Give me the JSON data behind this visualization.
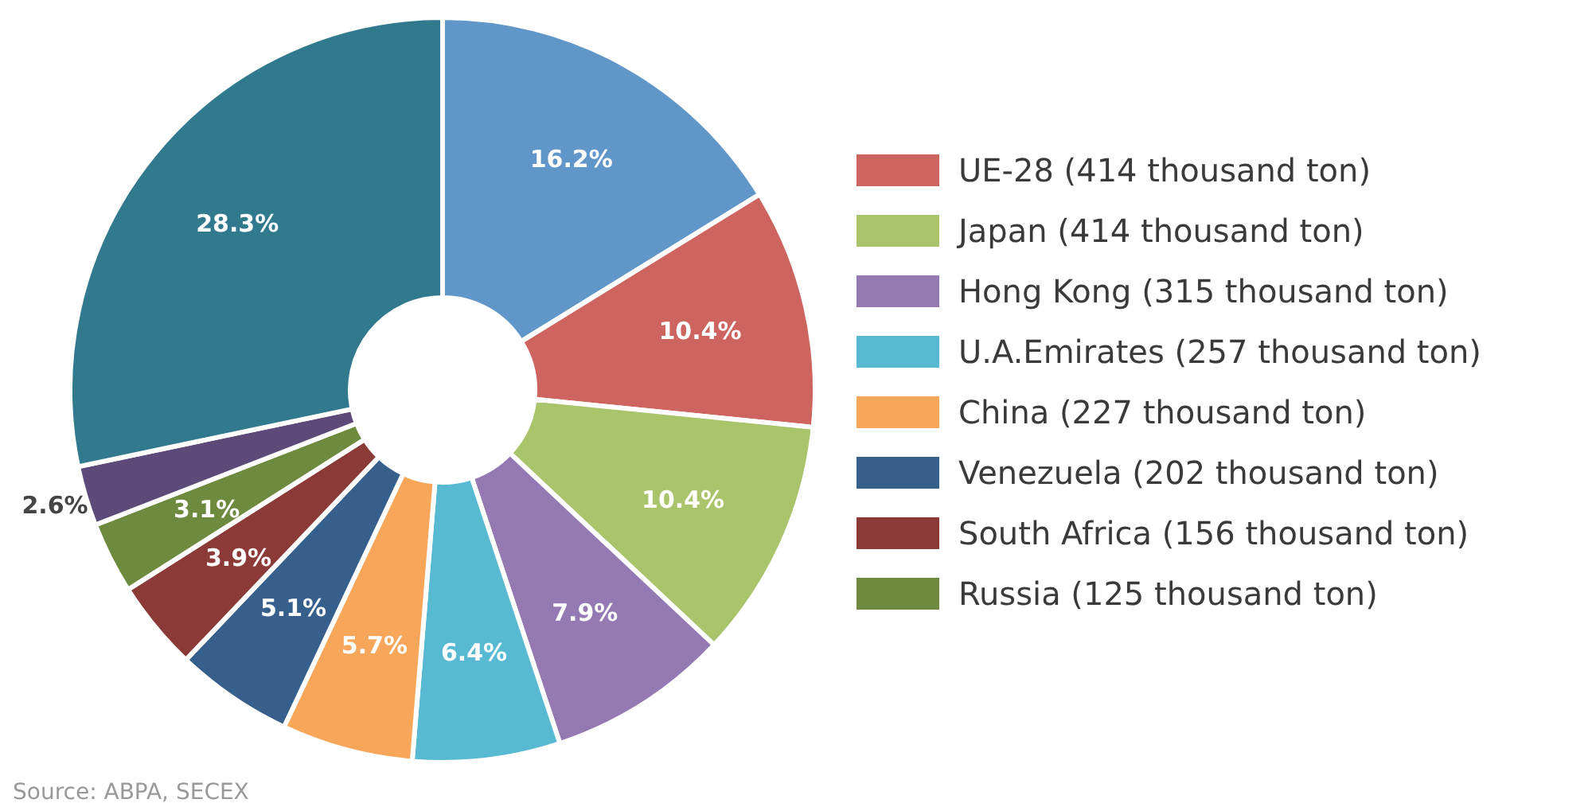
{
  "chart_data": {
    "type": "donut",
    "categories": [
      null,
      "UE-28 (414 thousand ton)",
      "Japan (414 thousand ton)",
      "Hong Kong (315 thousand ton)",
      "U.A.Emirates (257 thousand ton)",
      "China (227 thousand ton)",
      "Venezuela (202 thousand ton)",
      "South Africa (156 thousand ton)",
      "Russia (125 thousand ton)",
      null,
      null
    ],
    "values": [
      16.2,
      10.4,
      10.4,
      7.9,
      6.4,
      5.7,
      5.1,
      3.9,
      3.1,
      2.6,
      28.3
    ],
    "value_labels": [
      "16.2%",
      "10.4%",
      "10.4%",
      "7.9%",
      "6.4%",
      "5.7%",
      "5.1%",
      "3.9%",
      "3.1%",
      "2.6%",
      "28.3%"
    ],
    "colors": [
      "#6096c8",
      "#cd645f",
      "#a9c46a",
      "#9479b3",
      "#58b9d3",
      "#f8a65a",
      "#365f8c",
      "#8c3a38",
      "#6e8a3e",
      "#5d4a78",
      "#317a8e"
    ],
    "legend": "right",
    "annotations": [
      "Source: ABPA, SECEX"
    ]
  }
}
